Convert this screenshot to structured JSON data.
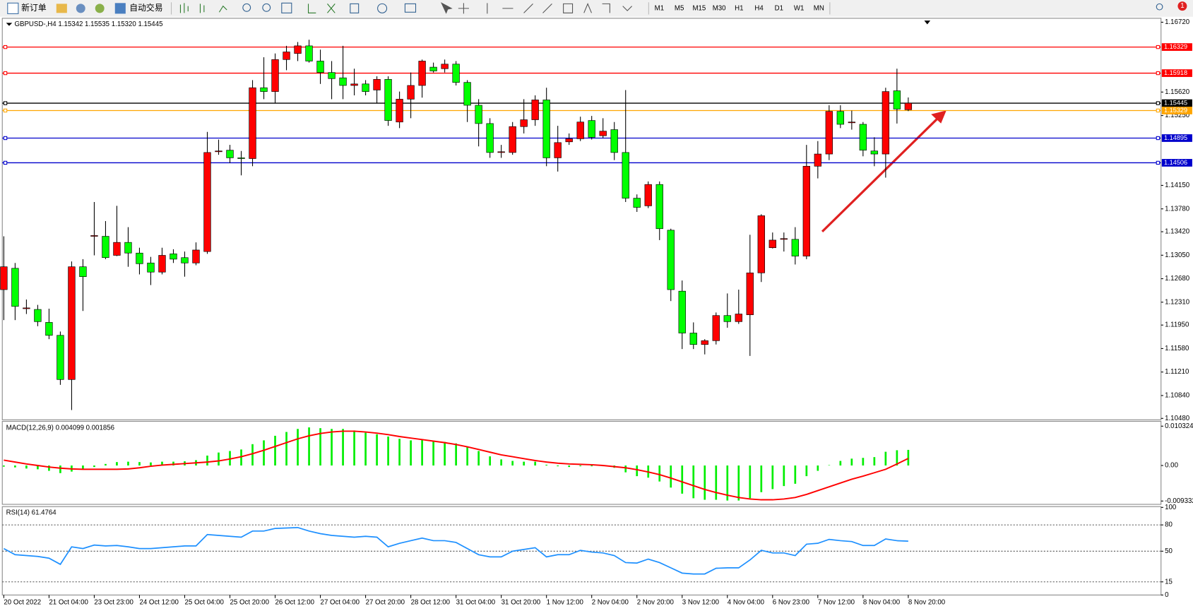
{
  "toolbar": {
    "new_order": "新订单",
    "auto_trading": "自动交易",
    "timeframes": [
      "M1",
      "M5",
      "M15",
      "M30",
      "H1",
      "H4",
      "D1",
      "W1",
      "MN"
    ],
    "badge": "1"
  },
  "chart_data": [
    {
      "type": "candlestick",
      "title": "GBPUSD-,H4  1.15342 1.15535 1.15320 1.15445",
      "up_color": "#ff0000",
      "down_color": "#00ff00",
      "categories": [
        "20 Oct 2022",
        null,
        null,
        null,
        "21 Oct 04:00",
        null,
        null,
        null,
        "23 Oct 23:00",
        null,
        null,
        null,
        "24 Oct 12:00",
        null,
        null,
        null,
        "25 Oct 04:00",
        null,
        null,
        null,
        "25 Oct 20:00",
        null,
        null,
        null,
        "26 Oct 12:00",
        null,
        null,
        null,
        "27 Oct 04:00",
        null,
        null,
        null,
        "27 Oct 20:00",
        null,
        null,
        null,
        "28 Oct 12:00",
        null,
        null,
        null,
        "31 Oct 04:00",
        null,
        null,
        null,
        "31 Oct 20:00",
        null,
        null,
        null,
        "1 Nov 12:00",
        null,
        null,
        null,
        "2 Nov 04:00",
        null,
        null,
        null,
        "2 Nov 20:00",
        null,
        null,
        null,
        "3 Nov 12:00",
        null,
        null,
        null,
        "4 Nov 04:00",
        null,
        null,
        null,
        "6 Nov 23:00",
        null,
        null,
        null,
        "7 Nov 12:00",
        null,
        null,
        null,
        "8 Nov 04:00",
        null,
        null,
        null,
        "8 Nov 20:00"
      ],
      "open": [
        1.12508,
        1.12844,
        1.12208,
        1.12196,
        1.11992,
        1.11788,
        1.11092,
        1.12868,
        1.13348,
        1.13348,
        1.13048,
        1.13252,
        1.13084,
        1.12928,
        1.12784,
        1.13072,
        1.13012,
        1.12928,
        1.13108,
        1.1468,
        1.14704,
        1.14584,
        1.14572,
        1.15688,
        1.15628,
        1.16132,
        1.16228,
        1.16348,
        1.16108,
        1.15928,
        1.15844,
        1.15724,
        1.15748,
        1.15652,
        1.1582,
        1.15148,
        1.15508,
        1.15724,
        1.16012,
        1.15988,
        1.1606,
        1.15772,
        1.15412,
        1.15124,
        1.14668,
        1.14668,
        1.15076,
        1.15184,
        1.15496,
        1.14584,
        1.14836,
        1.14884,
        1.15172,
        1.14932,
        1.15028,
        1.14668,
        1.13948,
        1.13828,
        1.14164,
        1.13444,
        1.12484,
        1.11824,
        1.11644,
        1.11704,
        1.121,
        1.12004,
        1.12112,
        1.12772,
        1.13168,
        1.133,
        1.133,
        1.13036,
        1.14452,
        1.14644,
        1.15316,
        1.15136,
        1.15112,
        1.14692,
        1.14644,
        1.1564,
        1.15342
      ],
      "high": [
        1.13348,
        1.12928,
        1.12352,
        1.12268,
        1.12208,
        1.11848,
        1.12952,
        1.12988,
        1.13888,
        1.13588,
        1.13828,
        1.13492,
        1.13168,
        1.13024,
        1.13168,
        1.13144,
        1.13108,
        1.13252,
        1.14992,
        1.14872,
        1.14788,
        1.14692,
        1.15808,
        1.16168,
        1.16228,
        1.16348,
        1.16408,
        1.16444,
        1.16288,
        1.16108,
        1.16348,
        1.15988,
        1.15808,
        1.15868,
        1.15868,
        1.15628,
        1.15928,
        1.16132,
        1.16084,
        1.16132,
        1.16108,
        1.15808,
        1.15508,
        1.15208,
        1.14788,
        1.15148,
        1.15508,
        1.15568,
        1.15688,
        1.15088,
        1.14968,
        1.15232,
        1.15244,
        1.15208,
        1.15148,
        1.15652,
        1.14008,
        1.14212,
        1.14212,
        1.13468,
        1.12652,
        1.11992,
        1.11728,
        1.12148,
        1.12448,
        1.12508,
        1.13372,
        1.13696,
        1.13408,
        1.13408,
        1.13492,
        1.14788,
        1.14848,
        1.15412,
        1.15412,
        1.15328,
        1.15148,
        1.14908,
        1.15688,
        1.15988,
        1.15535
      ],
      "low": [
        1.12028,
        1.12028,
        1.12124,
        1.11932,
        1.11728,
        1.11008,
        1.10612,
        1.12172,
        1.13048,
        1.12988,
        1.13036,
        1.12868,
        1.12748,
        1.1258,
        1.12748,
        1.12928,
        1.12712,
        1.12892,
        1.13072,
        1.14632,
        1.145,
        1.14308,
        1.14452,
        1.15508,
        1.15448,
        1.15964,
        1.16108,
        1.16084,
        1.15748,
        1.15508,
        1.15508,
        1.15568,
        1.15568,
        1.15448,
        1.15088,
        1.15052,
        1.15208,
        1.15532,
        1.15928,
        1.15928,
        1.15724,
        1.15148,
        1.14764,
        1.14584,
        1.14584,
        1.14632,
        1.14968,
        1.15088,
        1.14452,
        1.14368,
        1.14788,
        1.14848,
        1.14872,
        1.14896,
        1.14548,
        1.13888,
        1.13732,
        1.13792,
        1.13288,
        1.12328,
        1.11572,
        1.11572,
        1.11488,
        1.11644,
        1.11908,
        1.11968,
        1.11464,
        1.12628,
        1.13156,
        1.13108,
        1.12904,
        1.12988,
        1.1426,
        1.14548,
        1.15052,
        1.15028,
        1.14608,
        1.14452,
        1.14272,
        1.15124,
        1.1532
      ],
      "close": [
        1.12868,
        1.12244,
        1.1222,
        1.12004,
        1.11788,
        1.11092,
        1.12868,
        1.12712,
        1.1336,
        1.13012,
        1.13252,
        1.13084,
        1.12916,
        1.12784,
        1.13048,
        1.12988,
        1.12928,
        1.13132,
        1.14668,
        1.14692,
        1.14584,
        1.14572,
        1.15688,
        1.15628,
        1.16132,
        1.16252,
        1.16348,
        1.16108,
        1.15928,
        1.15832,
        1.15724,
        1.15748,
        1.15628,
        1.1582,
        1.15172,
        1.15508,
        1.15724,
        1.16108,
        1.15952,
        1.1606,
        1.15772,
        1.15412,
        1.15124,
        1.14668,
        1.1468,
        1.15076,
        1.15184,
        1.15496,
        1.14584,
        1.14824,
        1.14884,
        1.15148,
        1.14908,
        1.15004,
        1.14668,
        1.13948,
        1.13804,
        1.14164,
        1.13468,
        1.12508,
        1.11824,
        1.11644,
        1.11704,
        1.121,
        1.12004,
        1.12124,
        1.12772,
        1.13672,
        1.13288,
        1.13312,
        1.13036,
        1.14452,
        1.14644,
        1.15316,
        1.15112,
        1.15148,
        1.14704,
        1.14644,
        1.15628,
        1.15352,
        1.15445
      ],
      "levels": [
        {
          "value": 1.16329,
          "color": "#ff0000"
        },
        {
          "value": 1.15918,
          "color": "#ff0000"
        },
        {
          "value": 1.15445,
          "color": "#000000"
        },
        {
          "value": 1.15329,
          "color": "#ffa500"
        },
        {
          "value": 1.14895,
          "color": "#0000cc"
        },
        {
          "value": 1.14506,
          "color": "#0000cc"
        }
      ],
      "ylim": [
        1.1047,
        1.1677
      ],
      "yticks": [
        {
          "value": 1.1672,
          "label": "1.16720"
        },
        {
          "value": 1.1562,
          "label": "1.15620"
        },
        {
          "value": 1.1525,
          "label": "1.15250"
        },
        {
          "value": 1.1415,
          "label": "1.14150"
        },
        {
          "value": 1.1378,
          "label": "1.13780"
        },
        {
          "value": 1.1342,
          "label": "1.13420"
        },
        {
          "value": 1.1305,
          "label": "1.13050"
        },
        {
          "value": 1.1268,
          "label": "1.12680"
        },
        {
          "value": 1.1231,
          "label": "1.12310"
        },
        {
          "value": 1.1195,
          "label": "1.11950"
        },
        {
          "value": 1.1158,
          "label": "1.11580"
        },
        {
          "value": 1.1121,
          "label": "1.11210"
        },
        {
          "value": 1.1084,
          "label": "1.10840"
        },
        {
          "value": 1.1048,
          "label": "1.10480"
        }
      ]
    },
    {
      "type": "macd",
      "title": "MACD(12,26,9) 0.004099 0.001856",
      "ylim": [
        -0.0102,
        0.0116
      ],
      "yticks": [
        0.010324,
        {
          "value": 0,
          "label": "0.00"
        },
        -0.009332
      ],
      "series": [
        {
          "style": "bar",
          "color": "#00ee00",
          "values": [
            -0.0003,
            -0.0005,
            -0.0008,
            -0.001,
            -0.0014,
            -0.002,
            -0.0016,
            -0.001,
            -0.0004,
            0.0004,
            0.0009,
            0.001,
            0.0009,
            0.0008,
            0.001,
            0.001,
            0.0011,
            0.0014,
            0.0026,
            0.0034,
            0.0038,
            0.0042,
            0.0056,
            0.0066,
            0.0078,
            0.0088,
            0.0096,
            0.01,
            0.0098,
            0.0096,
            0.0096,
            0.0092,
            0.0086,
            0.0082,
            0.0076,
            0.007,
            0.0066,
            0.0068,
            0.0064,
            0.0062,
            0.0058,
            0.005,
            0.0038,
            0.0024,
            0.0016,
            0.0012,
            0.001,
            0.001,
            0.0002,
            -0.0002,
            -0.0004,
            -0.0002,
            -0.0002,
            -0.0002,
            -0.0006,
            -0.0018,
            -0.0028,
            -0.0032,
            -0.0042,
            -0.0058,
            -0.0074,
            -0.0086,
            -0.009,
            -0.009,
            -0.0092,
            -0.0092,
            -0.0086,
            -0.007,
            -0.0062,
            -0.0054,
            -0.0048,
            -0.0028,
            -0.0014,
            0,
            0.0012,
            0.0018,
            0.002,
            0.0022,
            0.0036,
            0.004,
            0.004099
          ]
        },
        {
          "style": "line",
          "color": "#ff0000",
          "values": [
            0.0014,
            0.0009,
            0.0004,
            0,
            -0.0004,
            -0.0007,
            -0.0009,
            -0.001,
            -0.001,
            -0.001,
            -0.001,
            -0.0009,
            -0.0006,
            -0.0002,
            0.0001,
            0.0003,
            0.0005,
            0.0007,
            0.0009,
            0.0012,
            0.0017,
            0.0023,
            0.0031,
            0.004,
            0.005,
            0.006,
            0.007,
            0.0078,
            0.0084,
            0.0088,
            0.009,
            0.009,
            0.0088,
            0.0085,
            0.0081,
            0.0076,
            0.0072,
            0.0068,
            0.0064,
            0.006,
            0.0055,
            0.0049,
            0.0042,
            0.0035,
            0.0028,
            0.0023,
            0.0018,
            0.0013,
            0.0009,
            0.0006,
            0.0004,
            0.0003,
            0.0002,
            0,
            -0.0003,
            -0.0006,
            -0.0011,
            -0.0017,
            -0.0024,
            -0.0033,
            -0.0043,
            -0.0053,
            -0.0063,
            -0.0071,
            -0.0078,
            -0.0084,
            -0.0088,
            -0.009,
            -0.009,
            -0.0088,
            -0.0084,
            -0.0076,
            -0.0066,
            -0.0056,
            -0.0046,
            -0.0036,
            -0.0028,
            -0.0019,
            -0.001,
            0.0004,
            0.001856
          ]
        }
      ]
    },
    {
      "type": "line",
      "title": "RSI(14) 61.4764",
      "color": "#1e90ff",
      "ylim": [
        0,
        100
      ],
      "yticks": [
        100,
        80,
        50,
        15,
        0
      ],
      "values": [
        53,
        46,
        45,
        44,
        42,
        35,
        55,
        53,
        57,
        56,
        56.5,
        55,
        53,
        53,
        54,
        55,
        56,
        56,
        69,
        68,
        67,
        66,
        73,
        73,
        76,
        76.5,
        77,
        73,
        70,
        68,
        67,
        66,
        67,
        66,
        55,
        59,
        62,
        65,
        62,
        62,
        60,
        53,
        46,
        43.5,
        43.5,
        50,
        52,
        54,
        43.5,
        46,
        46,
        51,
        49,
        48,
        45,
        37,
        36.5,
        41,
        37,
        31,
        25,
        24,
        24,
        30.5,
        31,
        31,
        40,
        51,
        48,
        48,
        45,
        58,
        59,
        63.5,
        62,
        61,
        56.5,
        56.5,
        64,
        62,
        61.4764
      ]
    }
  ]
}
